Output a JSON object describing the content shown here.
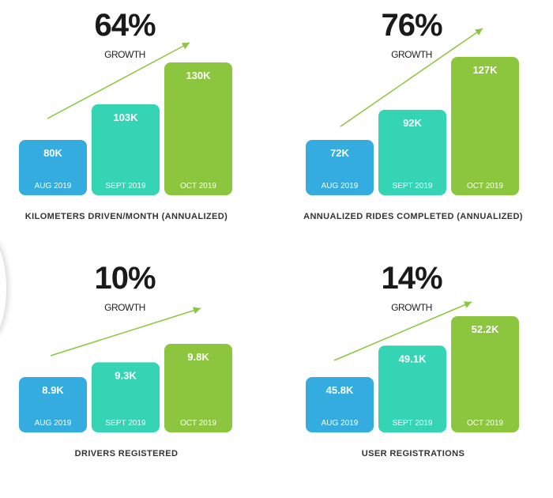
{
  "colors": {
    "aug": "#34ace0",
    "sept": "#34d4b4",
    "oct": "#8cc63f",
    "arrow": "#8cc63f"
  },
  "panels": [
    {
      "growth_pct": "64%",
      "growth_label": "GROWTH",
      "caption": "KILOMETERS DRIVEN/MONTH (ANNUALIZED)"
    },
    {
      "growth_pct": "76%",
      "growth_label": "GROWTH",
      "caption": "ANNUALIZED RIDES COMPLETED (ANNUALIZED)"
    },
    {
      "growth_pct": "10%",
      "growth_label": "GROWTH",
      "caption": "DRIVERS REGISTERED"
    },
    {
      "growth_pct": "14%",
      "growth_label": "GROWTH",
      "caption": "USER REGISTRATIONS"
    }
  ],
  "chart_data": [
    {
      "type": "bar",
      "title": "KILOMETERS DRIVEN/MONTH (ANNUALIZED)",
      "categories": [
        "AUG 2019",
        "SEPT 2019",
        "OCT 2019"
      ],
      "values": [
        80,
        103,
        130
      ],
      "value_labels": [
        "80K",
        "103K",
        "130K"
      ]
    },
    {
      "type": "bar",
      "title": "ANNUALIZED RIDES COMPLETED (ANNUALIZED)",
      "categories": [
        "AUG 2019",
        "SEPT 2019",
        "OCT 2019"
      ],
      "values": [
        72,
        92,
        127
      ],
      "value_labels": [
        "72K",
        "92K",
        "127K"
      ]
    },
    {
      "type": "bar",
      "title": "DRIVERS REGISTERED",
      "categories": [
        "AUG 2019",
        "SEPT 2019",
        "OCT 2019"
      ],
      "values": [
        8.9,
        9.3,
        9.8
      ],
      "value_labels": [
        "8.9K",
        "9.3K",
        "9.8K"
      ]
    },
    {
      "type": "bar",
      "title": "USER REGISTRATIONS",
      "categories": [
        "AUG 2019",
        "SEPT 2019",
        "OCT 2019"
      ],
      "values": [
        45.8,
        49.1,
        52.2
      ],
      "value_labels": [
        "45.8K",
        "49.1K",
        "52.2K"
      ]
    }
  ]
}
